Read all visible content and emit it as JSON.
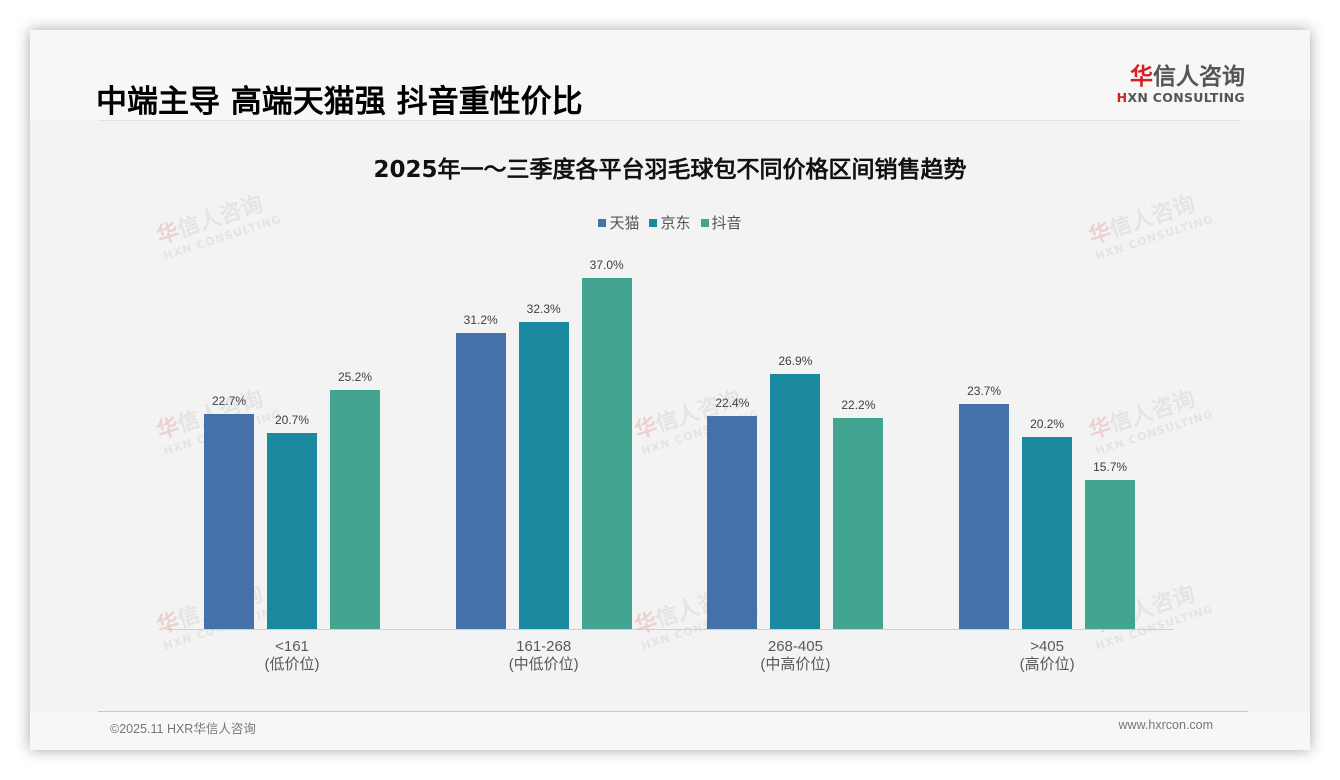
{
  "header": {
    "title": "中端主导 高端天猫强 抖音重性价比",
    "logo": {
      "cn_accent": "华",
      "cn_rest": "信人咨询",
      "en_accent": "H",
      "en_rest": "XN CONSULTING"
    }
  },
  "watermark": {
    "cn_accent": "华",
    "cn_rest": "信人咨询",
    "en": "HXN CONSULTING"
  },
  "colors": {
    "tmall": "#4472a8",
    "jd": "#1a89a0",
    "douyin": "#41a592",
    "background": "#f3f3f3"
  },
  "chart_data": {
    "type": "bar",
    "title": "2025年一～三季度各平台羽毛球包不同价格区间销售趋势",
    "xlabel": "",
    "ylabel": "",
    "ylim": [
      0,
      40
    ],
    "grid": false,
    "legend_position": "top",
    "value_format": "percent",
    "categories": [
      "<161\n(低价位)",
      "161-268\n(中低价位)",
      "268-405\n(中高价位)",
      ">405\n(高价位)"
    ],
    "category_labels": [
      {
        "range": "<161",
        "tier": "(低价位)"
      },
      {
        "range": "161-268",
        "tier": "(中低价位)"
      },
      {
        "range": "268-405",
        "tier": "(中高价位)"
      },
      {
        "range": ">405",
        "tier": "(高价位)"
      }
    ],
    "series": [
      {
        "name": "天猫",
        "color": "#4472a8",
        "values": [
          22.7,
          31.2,
          22.4,
          23.7
        ],
        "labels": [
          "22.7%",
          "31.2%",
          "22.4%",
          "23.7%"
        ]
      },
      {
        "name": "京东",
        "color": "#1a89a0",
        "values": [
          20.7,
          32.3,
          26.9,
          20.2
        ],
        "labels": [
          "20.7%",
          "32.3%",
          "26.9%",
          "20.2%"
        ]
      },
      {
        "name": "抖音",
        "color": "#41a592",
        "values": [
          25.2,
          37.0,
          22.2,
          15.7
        ],
        "labels": [
          "25.2%",
          "37.0%",
          "22.2%",
          "15.7%"
        ]
      }
    ]
  },
  "footer": {
    "copyright": "©2025.11 HXR华信人咨询",
    "website": "www.hxrcon.com"
  }
}
